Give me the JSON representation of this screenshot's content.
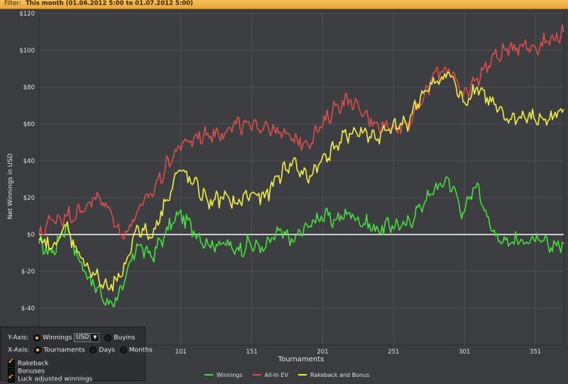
{
  "filter": {
    "label": "Filter:",
    "value": "This month (01.06.2012 5:00 to 01.07.2012 5:00)"
  },
  "chart_data": {
    "type": "line",
    "title": "",
    "xlabel": "Tournaments",
    "ylabel": "Net Winnings in USD",
    "xlim": [
      1,
      371
    ],
    "ylim": [
      -60,
      120
    ],
    "x_ticks": [
      101,
      151,
      201,
      251,
      301,
      351
    ],
    "x_tick_labels": [
      "101",
      "151",
      "201",
      "251",
      "301",
      "351"
    ],
    "y_ticks": [
      -40,
      -20,
      0,
      20,
      40,
      60,
      80,
      100,
      120
    ],
    "y_tick_labels": [
      "$-40",
      "$-20",
      "$0",
      "$20",
      "$40",
      "$60",
      "$80",
      "$100",
      "$120"
    ],
    "grid": true,
    "legend_position": "bottom-center",
    "series": [
      {
        "name": "Winnings",
        "color": "#45e03a",
        "x": [
          1,
          10,
          20,
          30,
          40,
          50,
          60,
          70,
          80,
          90,
          100,
          110,
          120,
          130,
          140,
          150,
          160,
          170,
          180,
          190,
          200,
          210,
          220,
          230,
          240,
          250,
          260,
          270,
          280,
          290,
          300,
          310,
          320,
          330,
          340,
          350,
          360,
          371
        ],
        "y": [
          -5,
          -10,
          5,
          -15,
          -28,
          -38,
          -30,
          -5,
          -12,
          0,
          12,
          2,
          -5,
          -5,
          -8,
          -5,
          -8,
          2,
          -4,
          5,
          10,
          8,
          12,
          6,
          3,
          5,
          5,
          15,
          25,
          30,
          12,
          28,
          2,
          -3,
          -4,
          -3,
          -6,
          -5
        ]
      },
      {
        "name": "All-In EV",
        "color": "#e04b4b",
        "x": [
          1,
          10,
          20,
          30,
          40,
          50,
          60,
          70,
          80,
          90,
          100,
          110,
          120,
          130,
          140,
          150,
          160,
          170,
          180,
          190,
          200,
          210,
          220,
          230,
          240,
          250,
          260,
          270,
          280,
          290,
          300,
          310,
          320,
          330,
          340,
          350,
          360,
          371
        ],
        "y": [
          0,
          8,
          10,
          12,
          20,
          15,
          -2,
          12,
          22,
          36,
          48,
          52,
          55,
          55,
          60,
          58,
          60,
          55,
          52,
          50,
          58,
          70,
          73,
          65,
          60,
          58,
          60,
          70,
          88,
          90,
          75,
          85,
          95,
          100,
          103,
          102,
          105,
          110
        ]
      },
      {
        "name": "Rakeback and Bonus",
        "color": "#f4f03a",
        "x": [
          1,
          10,
          20,
          30,
          40,
          50,
          60,
          70,
          80,
          90,
          100,
          110,
          120,
          130,
          140,
          150,
          160,
          170,
          180,
          190,
          200,
          210,
          220,
          230,
          240,
          250,
          260,
          270,
          280,
          290,
          300,
          310,
          320,
          330,
          340,
          350,
          360,
          371
        ],
        "y": [
          -3,
          -8,
          5,
          -12,
          -22,
          -30,
          -22,
          5,
          -2,
          18,
          35,
          28,
          18,
          20,
          17,
          22,
          20,
          32,
          40,
          30,
          40,
          48,
          55,
          56,
          52,
          58,
          60,
          75,
          82,
          88,
          72,
          80,
          72,
          62,
          64,
          63,
          62,
          68
        ]
      }
    ]
  },
  "controls": {
    "y_axis_label": "Y-Axis:",
    "y_opt_winnings": "Winnings",
    "currency": "USD",
    "y_opt_buyins": "Buyins",
    "x_axis_label": "X-Axis:",
    "x_opt_tournaments": "Tournaments",
    "x_opt_days": "Days",
    "x_opt_months": "Months",
    "rakeback": "Rakeback",
    "bonuses": "Bonuses",
    "luck_adjusted": "Luck adjusted winnings"
  }
}
